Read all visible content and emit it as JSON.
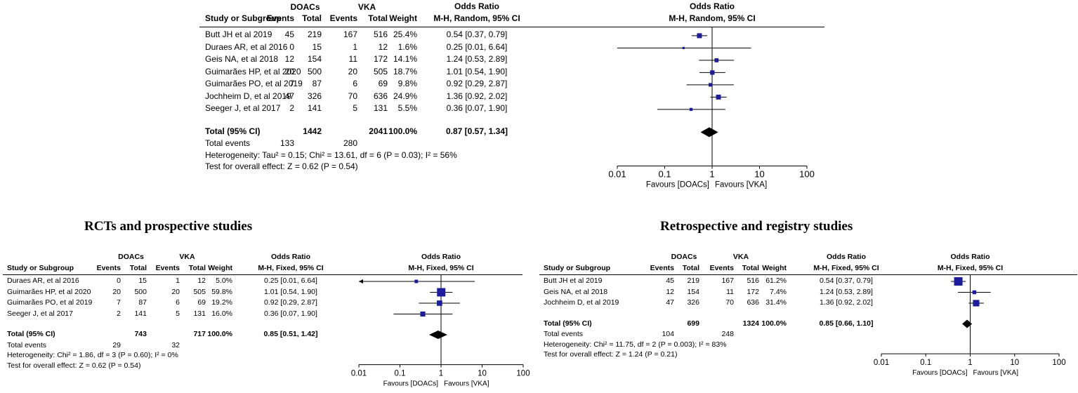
{
  "headers": {
    "study": "Study or Subgroup",
    "events": "Events",
    "total": "Total",
    "weight": "Weight",
    "odds_ratio": "Odds Ratio",
    "group_doacs": "DOACs",
    "group_vka": "VKA"
  },
  "chart_data": [
    {
      "id": "overall",
      "type": "forest",
      "title": "",
      "method_label": "M-H, Random, 95% CI",
      "favours_left": "Favours [DOACs]",
      "favours_right": "Favours [VKA]",
      "x_scale": "log",
      "x_ticks": [
        0.01,
        0.1,
        1,
        10,
        100
      ],
      "x_tick_labels": [
        "0.01",
        "0.1",
        "1",
        "10",
        "100"
      ],
      "rows": [
        {
          "study": "Butt JH et al 2019",
          "d_events": "45",
          "d_total": "219",
          "v_events": "167",
          "v_total": "516",
          "weight": "25.4%",
          "or_text": "0.54 [0.37, 0.79]",
          "or": 0.54,
          "lo": 0.37,
          "hi": 0.79,
          "w": 25.4
        },
        {
          "study": "Duraes AR, et al 2016",
          "d_events": "0",
          "d_total": "15",
          "v_events": "1",
          "v_total": "12",
          "weight": "1.6%",
          "or_text": "0.25 [0.01, 6.64]",
          "or": 0.25,
          "lo": 0.01,
          "hi": 6.64,
          "w": 1.6
        },
        {
          "study": "Geis NA, et al 2018",
          "d_events": "12",
          "d_total": "154",
          "v_events": "11",
          "v_total": "172",
          "weight": "14.1%",
          "or_text": "1.24 [0.53, 2.89]",
          "or": 1.24,
          "lo": 0.53,
          "hi": 2.89,
          "w": 14.1
        },
        {
          "study": "Guimarães HP, et al 2020",
          "d_events": "20",
          "d_total": "500",
          "v_events": "20",
          "v_total": "505",
          "weight": "18.7%",
          "or_text": "1.01 [0.54, 1.90]",
          "or": 1.01,
          "lo": 0.54,
          "hi": 1.9,
          "w": 18.7
        },
        {
          "study": "Guimarães PO, et al 2019",
          "d_events": "7",
          "d_total": "87",
          "v_events": "6",
          "v_total": "69",
          "weight": "9.8%",
          "or_text": "0.92 [0.29, 2.87]",
          "or": 0.92,
          "lo": 0.29,
          "hi": 2.87,
          "w": 9.8
        },
        {
          "study": "Jochheim D, et al 2019",
          "d_events": "47",
          "d_total": "326",
          "v_events": "70",
          "v_total": "636",
          "weight": "24.9%",
          "or_text": "1.36 [0.92, 2.02]",
          "or": 1.36,
          "lo": 0.92,
          "hi": 2.02,
          "w": 24.9
        },
        {
          "study": "Seeger J, et al 2017",
          "d_events": "2",
          "d_total": "141",
          "v_events": "5",
          "v_total": "131",
          "weight": "5.5%",
          "or_text": "0.36 [0.07, 1.90]",
          "or": 0.36,
          "lo": 0.07,
          "hi": 1.9,
          "w": 5.5
        }
      ],
      "total": {
        "label": "Total (95% CI)",
        "d_total": "1442",
        "v_total": "2041",
        "weight": "100.0%",
        "or_text": "0.87 [0.57, 1.34]",
        "or": 0.87,
        "lo": 0.57,
        "hi": 1.34
      },
      "total_events": {
        "label": "Total events",
        "d": "133",
        "v": "280"
      },
      "heterogeneity": "Heterogeneity: Tau² = 0.15; Chi² = 13.61, df = 6 (P = 0.03); I² = 56%",
      "overall_effect": "Test for overall effect: Z = 0.62 (P = 0.54)"
    },
    {
      "id": "rct",
      "type": "forest",
      "title": "RCTs and prospective studies",
      "method_label": "M-H, Fixed, 95% CI",
      "favours_left": "Favours [DOACs]",
      "favours_right": "Favours [VKA]",
      "x_scale": "log",
      "x_ticks": [
        0.01,
        0.1,
        1,
        10,
        100
      ],
      "x_tick_labels": [
        "0.01",
        "0.1",
        "1",
        "10",
        "100"
      ],
      "rows": [
        {
          "study": "Duraes AR, et al 2016",
          "d_events": "0",
          "d_total": "15",
          "v_events": "1",
          "v_total": "12",
          "weight": "5.0%",
          "or_text": "0.25 [0.01, 6.64]",
          "or": 0.25,
          "lo": 0.01,
          "hi": 6.64,
          "w": 5.0
        },
        {
          "study": "Guimarães HP, et al 2020",
          "d_events": "20",
          "d_total": "500",
          "v_events": "20",
          "v_total": "505",
          "weight": "59.8%",
          "or_text": "1.01 [0.54, 1.90]",
          "or": 1.01,
          "lo": 0.54,
          "hi": 1.9,
          "w": 59.8
        },
        {
          "study": "Guimarães PO, et al 2019",
          "d_events": "7",
          "d_total": "87",
          "v_events": "6",
          "v_total": "69",
          "weight": "19.2%",
          "or_text": "0.92 [0.29, 2.87]",
          "or": 0.92,
          "lo": 0.29,
          "hi": 2.87,
          "w": 19.2
        },
        {
          "study": "Seeger J, et al 2017",
          "d_events": "2",
          "d_total": "141",
          "v_events": "5",
          "v_total": "131",
          "weight": "16.0%",
          "or_text": "0.36 [0.07, 1.90]",
          "or": 0.36,
          "lo": 0.07,
          "hi": 1.9,
          "w": 16.0
        }
      ],
      "total": {
        "label": "Total (95% CI)",
        "d_total": "743",
        "v_total": "717",
        "weight": "100.0%",
        "or_text": "0.85 [0.51, 1.42]",
        "or": 0.85,
        "lo": 0.51,
        "hi": 1.42
      },
      "total_events": {
        "label": "Total events",
        "d": "29",
        "v": "32"
      },
      "heterogeneity": "Heterogeneity: Chi² = 1.86, df = 3 (P = 0.60); I² = 0%",
      "overall_effect": "Test for overall effect: Z = 0.62 (P = 0.54)"
    },
    {
      "id": "retro",
      "type": "forest",
      "title": "Retrospective and registry studies",
      "method_label": "M-H, Fixed, 95% CI",
      "favours_left": "Favours [DOACs]",
      "favours_right": "Favours [VKA]",
      "x_scale": "log",
      "x_ticks": [
        0.01,
        0.1,
        1,
        10,
        100
      ],
      "x_tick_labels": [
        "0.01",
        "0.1",
        "1",
        "10",
        "100"
      ],
      "rows": [
        {
          "study": "Butt JH et al 2019",
          "d_events": "45",
          "d_total": "219",
          "v_events": "167",
          "v_total": "516",
          "weight": "61.2%",
          "or_text": "0.54 [0.37, 0.79]",
          "or": 0.54,
          "lo": 0.37,
          "hi": 0.79,
          "w": 61.2
        },
        {
          "study": "Geis NA, et al 2018",
          "d_events": "12",
          "d_total": "154",
          "v_events": "11",
          "v_total": "172",
          "weight": "7.4%",
          "or_text": "1.24 [0.53, 2.89]",
          "or": 1.24,
          "lo": 0.53,
          "hi": 2.89,
          "w": 7.4
        },
        {
          "study": "Jochheim D, et al 2019",
          "d_events": "47",
          "d_total": "326",
          "v_events": "70",
          "v_total": "636",
          "weight": "31.4%",
          "or_text": "1.36 [0.92, 2.02]",
          "or": 1.36,
          "lo": 0.92,
          "hi": 2.02,
          "w": 31.4
        }
      ],
      "total": {
        "label": "Total (95% CI)",
        "d_total": "699",
        "v_total": "1324",
        "weight": "100.0%",
        "or_text": "0.85 [0.66, 1.10]",
        "or": 0.85,
        "lo": 0.66,
        "hi": 1.1
      },
      "total_events": {
        "label": "Total events",
        "d": "104",
        "v": "248"
      },
      "heterogeneity": "Heterogeneity: Chi² = 11.75, df = 2 (P = 0.003); I² = 83%",
      "overall_effect": "Test for overall effect: Z = 1.24 (P = 0.21)"
    }
  ],
  "colors": {
    "square": "#1c1c9c",
    "diamond": "#000000",
    "line": "#000000"
  }
}
